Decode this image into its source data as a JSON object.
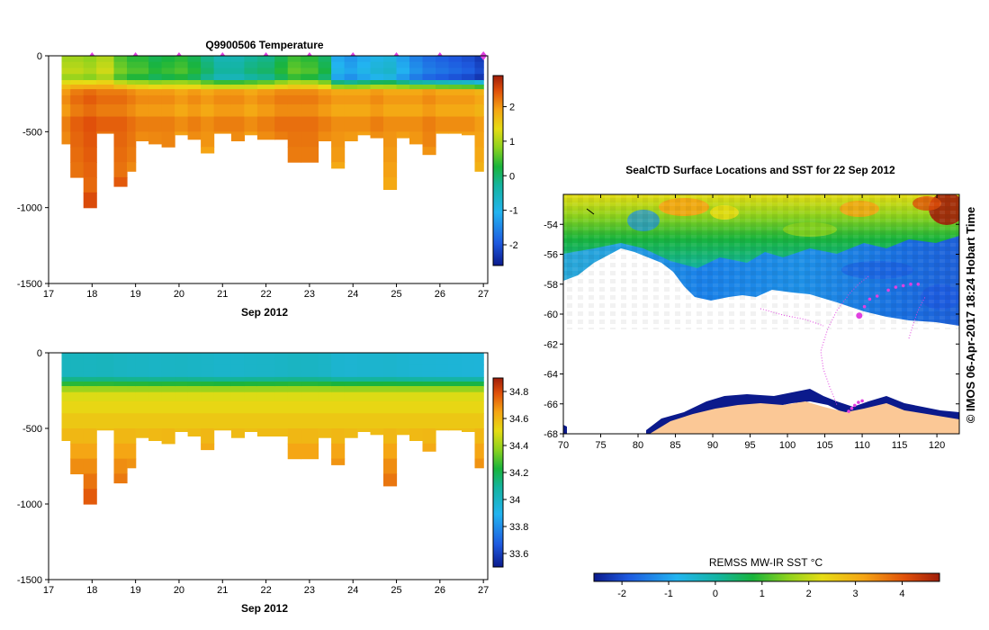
{
  "figure": {
    "credit": "© IMOS 06-Apr-2017 18:24 Hobart Time"
  },
  "chart_data": [
    {
      "id": "temperature",
      "type": "heatmap",
      "title": "Q9900506  Temperature",
      "xlabel": "Sep 2012",
      "ylabel": "",
      "xlim": [
        17,
        27.1
      ],
      "ylim": [
        -1500,
        0
      ],
      "xticks": [
        "17",
        "18",
        "19",
        "20",
        "21",
        "22",
        "23",
        "24",
        "25",
        "26",
        "27"
      ],
      "yticks": [
        "0",
        "-500",
        "-1000",
        "-1500"
      ],
      "colorbar": {
        "ticks": [
          "2",
          "1",
          "0",
          "-1",
          "-2"
        ],
        "range": [
          -2.6,
          2.9
        ]
      },
      "profile_markers_x": [
        18,
        19,
        20,
        21,
        22,
        23,
        24,
        25,
        26,
        27
      ],
      "profiles": [
        {
          "x": 17.3,
          "depth": 580,
          "surf": 0.9,
          "deep": 2.1
        },
        {
          "x": 17.5,
          "depth": 800,
          "surf": 0.9,
          "deep": 2.3
        },
        {
          "x": 17.8,
          "depth": 1000,
          "surf": 0.8,
          "deep": 2.4
        },
        {
          "x": 18.1,
          "depth": 510,
          "surf": 1.0,
          "deep": 2.3
        },
        {
          "x": 18.5,
          "depth": 860,
          "surf": 0.5,
          "deep": 2.3
        },
        {
          "x": 18.8,
          "depth": 760,
          "surf": 0.3,
          "deep": 2.2
        },
        {
          "x": 19.0,
          "depth": 560,
          "surf": 0.3,
          "deep": 2.1
        },
        {
          "x": 19.3,
          "depth": 580,
          "surf": 0.1,
          "deep": 2.1
        },
        {
          "x": 19.6,
          "depth": 600,
          "surf": 0.2,
          "deep": 2.1
        },
        {
          "x": 19.9,
          "depth": 520,
          "surf": 0.3,
          "deep": 2.0
        },
        {
          "x": 20.2,
          "depth": 550,
          "surf": 0.1,
          "deep": 2.1
        },
        {
          "x": 20.5,
          "depth": 640,
          "surf": -0.2,
          "deep": 2.0
        },
        {
          "x": 20.8,
          "depth": 510,
          "surf": -0.5,
          "deep": 2.1
        },
        {
          "x": 21.2,
          "depth": 560,
          "surf": -0.5,
          "deep": 2.1
        },
        {
          "x": 21.5,
          "depth": 520,
          "surf": -0.3,
          "deep": 2.0
        },
        {
          "x": 21.8,
          "depth": 550,
          "surf": -0.2,
          "deep": 2.1
        },
        {
          "x": 22.2,
          "depth": 550,
          "surf": 0.1,
          "deep": 2.2
        },
        {
          "x": 22.5,
          "depth": 700,
          "surf": 0.4,
          "deep": 2.2
        },
        {
          "x": 22.8,
          "depth": 700,
          "surf": 0.3,
          "deep": 2.2
        },
        {
          "x": 23.2,
          "depth": 560,
          "surf": 0.0,
          "deep": 2.1
        },
        {
          "x": 23.5,
          "depth": 740,
          "surf": -1.2,
          "deep": 2.0
        },
        {
          "x": 23.8,
          "depth": 560,
          "surf": -1.4,
          "deep": 2.0
        },
        {
          "x": 24.1,
          "depth": 520,
          "surf": -1.2,
          "deep": 2.0
        },
        {
          "x": 24.4,
          "depth": 540,
          "surf": -1.0,
          "deep": 2.1
        },
        {
          "x": 24.7,
          "depth": 880,
          "surf": -0.9,
          "deep": 2.0
        },
        {
          "x": 25.0,
          "depth": 540,
          "surf": -1.3,
          "deep": 2.0
        },
        {
          "x": 25.3,
          "depth": 580,
          "surf": -1.6,
          "deep": 2.0
        },
        {
          "x": 25.6,
          "depth": 650,
          "surf": -1.8,
          "deep": 2.1
        },
        {
          "x": 25.9,
          "depth": 510,
          "surf": -1.9,
          "deep": 2.0
        },
        {
          "x": 26.2,
          "depth": 510,
          "surf": -2.0,
          "deep": 2.0
        },
        {
          "x": 26.5,
          "depth": 520,
          "surf": -2.1,
          "deep": 2.0
        },
        {
          "x": 26.8,
          "depth": 760,
          "surf": -2.3,
          "deep": 1.9
        }
      ]
    },
    {
      "id": "salinity",
      "type": "heatmap",
      "title": "",
      "xlabel": "Sep 2012",
      "ylabel": "",
      "xlim": [
        17,
        27.1
      ],
      "ylim": [
        -1500,
        0
      ],
      "xticks": [
        "17",
        "18",
        "19",
        "20",
        "21",
        "22",
        "23",
        "24",
        "25",
        "26",
        "27"
      ],
      "yticks": [
        "0",
        "-500",
        "-1000",
        "-1500"
      ],
      "colorbar": {
        "ticks": [
          "34.8",
          "34.6",
          "34.4",
          "34.2",
          "34",
          "33.8",
          "33.6"
        ],
        "range": [
          33.5,
          34.9
        ]
      },
      "profiles_shared_with": "temperature"
    },
    {
      "id": "sst_map",
      "type": "heatmap",
      "title": "SealCTD Surface Locations and SST for 22 Sep 2012",
      "xlabel": "",
      "ylabel": "",
      "xlim": [
        70,
        123
      ],
      "ylim": [
        -68,
        -52
      ],
      "xticks": [
        "70",
        "75",
        "80",
        "85",
        "90",
        "95",
        "100",
        "105",
        "110",
        "115",
        "120"
      ],
      "yticks": [
        "-54",
        "-56",
        "-58",
        "-60",
        "-62",
        "-64",
        "-66",
        "-68"
      ],
      "colorbar": {
        "label": "REMSS MW-IR SST °C",
        "ticks": [
          "-2",
          "-1",
          "0",
          "1",
          "2",
          "3",
          "4"
        ],
        "range": [
          -2.6,
          4.8
        ]
      },
      "track_points": [
        [
          108.2,
          -66.5
        ],
        [
          108.6,
          -66.3
        ],
        [
          109.0,
          -66.1
        ],
        [
          109.5,
          -65.9
        ],
        [
          110.0,
          -65.8
        ],
        [
          110.3,
          -59.5
        ],
        [
          111.0,
          -59.0
        ],
        [
          112.0,
          -58.8
        ],
        [
          113.5,
          -58.4
        ],
        [
          114.5,
          -58.2
        ],
        [
          115.5,
          -58.1
        ],
        [
          116.5,
          -58.0
        ],
        [
          117.5,
          -58.0
        ]
      ],
      "current_location": [
        109.6,
        -60.1
      ]
    }
  ]
}
